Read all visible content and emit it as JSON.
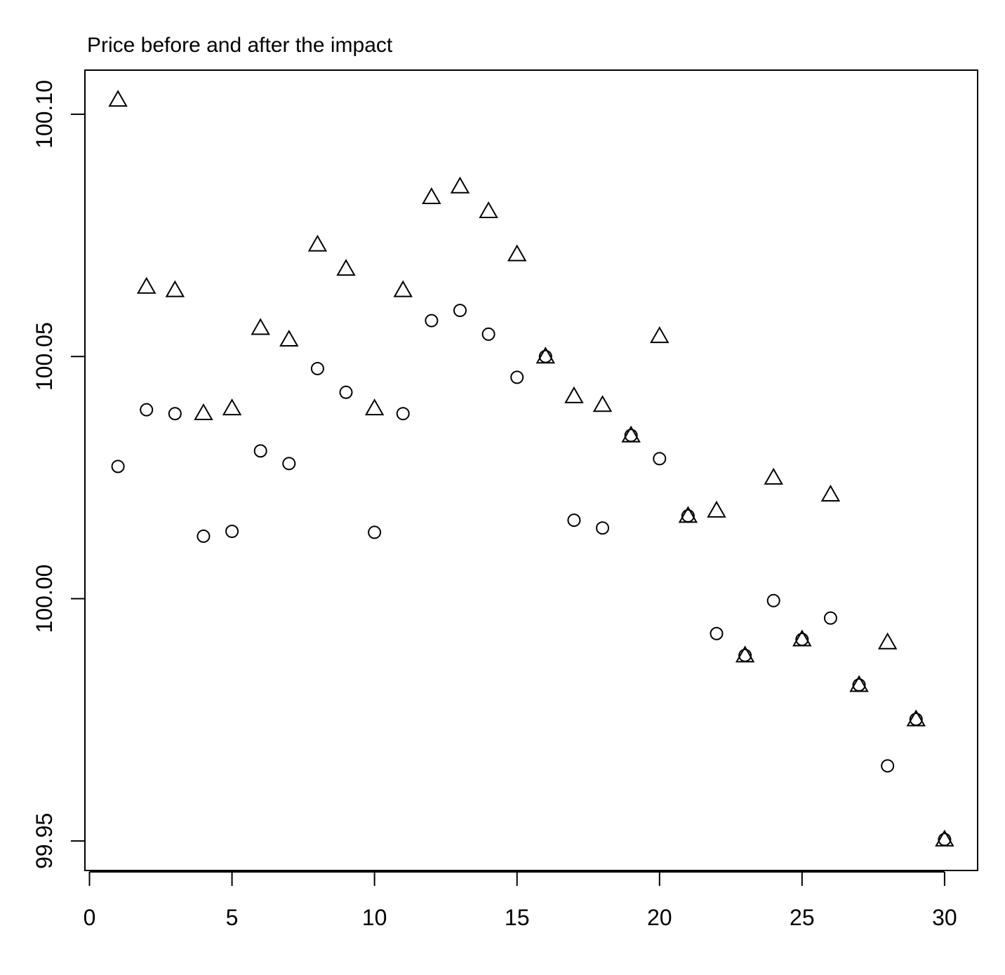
{
  "chart_data": {
    "type": "scatter",
    "title": "Price before and after the impact",
    "x": [
      1,
      2,
      3,
      4,
      5,
      6,
      7,
      8,
      9,
      10,
      11,
      12,
      13,
      14,
      15,
      16,
      17,
      18,
      19,
      20,
      21,
      22,
      23,
      24,
      25,
      26,
      27,
      28,
      29,
      30
    ],
    "series": [
      {
        "marker": "triangle",
        "color": "#000000",
        "values": [
          100.103,
          100.0644,
          100.0637,
          100.0383,
          100.0393,
          100.0559,
          100.0535,
          100.0731,
          100.0681,
          100.0393,
          100.0637,
          100.0829,
          100.0851,
          100.08,
          100.0711,
          100.05,
          100.0418,
          100.04,
          100.0337,
          100.0542,
          100.0171,
          100.0182,
          99.9883,
          100.025,
          99.9916,
          100.0215,
          99.9822,
          99.991,
          99.9751,
          99.9503
        ]
      },
      {
        "marker": "circle",
        "color": "#000000",
        "values": [
          100.0273,
          100.039,
          100.0382,
          100.0129,
          100.0139,
          100.0305,
          100.0279,
          100.0475,
          100.0426,
          100.0137,
          100.0382,
          100.0574,
          100.0595,
          100.0546,
          100.0457,
          100.05,
          100.0162,
          100.0146,
          100.0337,
          100.0289,
          100.0171,
          99.9928,
          99.9883,
          99.9996,
          99.9916,
          99.996,
          99.9822,
          99.9655,
          99.9751,
          99.9503
        ]
      }
    ],
    "xlim": [
      -0.16,
      31.16
    ],
    "xticks": [
      0,
      5,
      10,
      15,
      20,
      25,
      30
    ],
    "ylim": [
      99.9439,
      100.1091
    ],
    "yticks": [
      99.95,
      {
        "value": 100,
        "label": "100.00"
      },
      100.05,
      {
        "value": 100.1,
        "label": "100.10"
      }
    ],
    "grid": false
  }
}
